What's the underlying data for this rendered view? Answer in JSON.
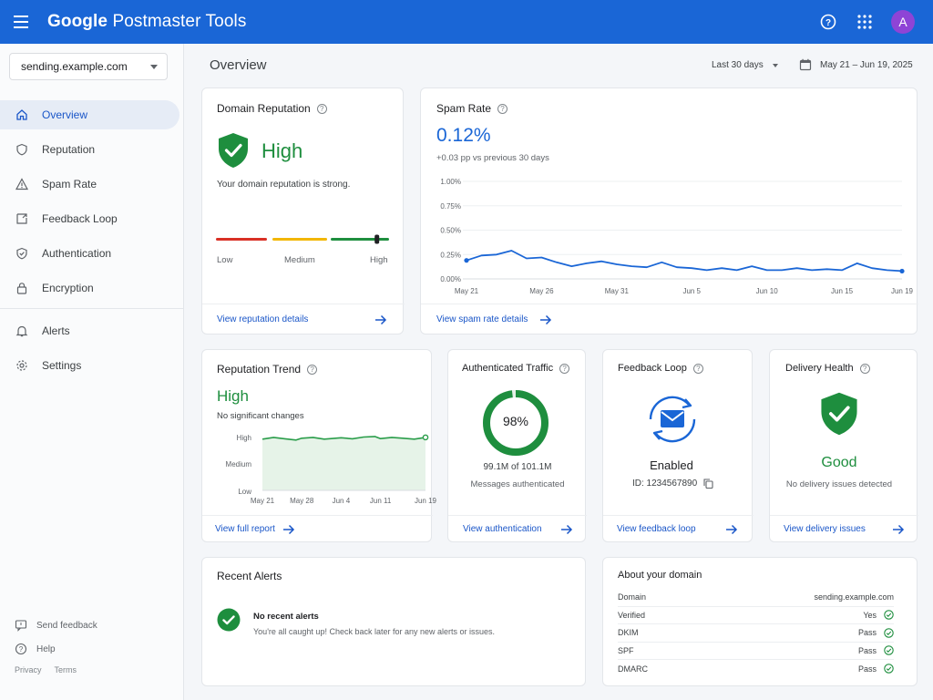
{
  "app": {
    "title_brand": "Google",
    "title_product": "Postmaster Tools",
    "avatar_letter": "A"
  },
  "sidebar": {
    "domain": "sending.example.com",
    "items": [
      {
        "label": "Overview",
        "icon": "home-icon"
      },
      {
        "label": "Reputation",
        "icon": "shield-icon"
      },
      {
        "label": "Spam Rate",
        "icon": "warning-icon"
      },
      {
        "label": "Feedback Loop",
        "icon": "feedback-icon"
      },
      {
        "label": "Authentication",
        "icon": "shield-check-icon"
      },
      {
        "label": "Encryption",
        "icon": "lock-icon"
      }
    ],
    "items2": [
      {
        "label": "Alerts",
        "icon": "bell-icon"
      },
      {
        "label": "Settings",
        "icon": "gear-icon"
      }
    ],
    "footer": {
      "send_feedback": "Send feedback",
      "help": "Help",
      "privacy": "Privacy",
      "terms": "Terms"
    }
  },
  "header": {
    "title": "Overview",
    "range": "Last 30 days",
    "dates": "May 21 – Jun 19, 2025"
  },
  "domain_reputation": {
    "title": "Domain Reputation",
    "status": "High",
    "description": "Your domain reputation is strong.",
    "scale": [
      "Low",
      "Medium",
      "High"
    ],
    "level": 0.93,
    "link": "View reputation details"
  },
  "spam_rate": {
    "title": "Spam Rate",
    "value": "0.12%",
    "delta": "+0.03 pp vs previous 30 days",
    "link": "View spam rate details"
  },
  "reputation_trend": {
    "title": "Reputation Trend",
    "status": "High",
    "note": "No significant changes",
    "link": "View full report"
  },
  "auth_traffic": {
    "title": "Authenticated Traffic",
    "percent": "98%",
    "counts": "99.1M of 101.1M",
    "caption": "Messages authenticated",
    "fraction": 0.98,
    "link": "View authentication"
  },
  "feedback_loop": {
    "title": "Feedback Loop",
    "status": "Enabled",
    "id": "ID: 1234567890",
    "link": "View feedback loop"
  },
  "delivery_health": {
    "title": "Delivery Health",
    "status": "Good",
    "caption": "No delivery issues detected",
    "link": "View delivery issues"
  },
  "recent_alerts": {
    "title": "Recent Alerts",
    "heading": "No recent alerts",
    "message": "You're all caught up! Check back later for any new alerts or issues."
  },
  "about_domain": {
    "title": "About your domain",
    "rows": [
      {
        "label": "Domain",
        "value": "sending.example.com"
      },
      {
        "label": "Verified",
        "value": "Yes"
      },
      {
        "label": "DKIM",
        "value": "Pass"
      },
      {
        "label": "SPF",
        "value": "Pass"
      },
      {
        "label": "DMARC",
        "value": "Pass"
      }
    ]
  },
  "chart_data": [
    {
      "type": "line",
      "title": "Spam Rate",
      "x": [
        "May 21",
        "May 22",
        "May 23",
        "May 24",
        "May 25",
        "May 26",
        "May 27",
        "May 28",
        "May 29",
        "May 30",
        "May 31",
        "Jun 1",
        "Jun 2",
        "Jun 3",
        "Jun 4",
        "Jun 5",
        "Jun 6",
        "Jun 7",
        "Jun 8",
        "Jun 9",
        "Jun 10",
        "Jun 11",
        "Jun 12",
        "Jun 13",
        "Jun 14",
        "Jun 15",
        "Jun 16",
        "Jun 17",
        "Jun 18",
        "Jun 19"
      ],
      "values": [
        0.19,
        0.24,
        0.25,
        0.29,
        0.21,
        0.22,
        0.17,
        0.13,
        0.16,
        0.18,
        0.15,
        0.13,
        0.12,
        0.17,
        0.12,
        0.11,
        0.09,
        0.11,
        0.09,
        0.13,
        0.09,
        0.09,
        0.11,
        0.09,
        0.1,
        0.09,
        0.16,
        0.11,
        0.09,
        0.08
      ],
      "x_ticks": [
        "May 21",
        "May 26",
        "May 31",
        "Jun 5",
        "Jun 10",
        "Jun 15",
        "Jun 19"
      ],
      "y_ticks": [
        "1.00%",
        "0.75%",
        "0.50%",
        "0.25%",
        "0.00%"
      ],
      "ylim": [
        0,
        1.0
      ],
      "grid": true,
      "color": "#1a66d6"
    },
    {
      "type": "area",
      "title": "Reputation Trend",
      "x": [
        "May 21",
        "May 23",
        "May 25",
        "May 27",
        "May 28",
        "May 30",
        "Jun 1",
        "Jun 3",
        "Jun 4",
        "Jun 6",
        "Jun 8",
        "Jun 10",
        "Jun 11",
        "Jun 13",
        "Jun 15",
        "Jun 17",
        "Jun 19"
      ],
      "values": [
        2.9,
        3.0,
        2.92,
        2.85,
        2.95,
        3.0,
        2.9,
        2.95,
        2.98,
        2.92,
        3.02,
        3.05,
        2.93,
        3.0,
        2.95,
        2.9,
        3.0
      ],
      "x_ticks": [
        "May 21",
        "May 28",
        "Jun 4",
        "Jun 11",
        "Jun 19"
      ],
      "y_ticks": [
        "High",
        "Medium",
        "Low"
      ],
      "ylim": [
        0,
        3.2
      ],
      "color": "#2a9d4a"
    }
  ],
  "colors": {
    "accent": "#1a66d6",
    "good": "#1e8e3e",
    "low": "#d93025",
    "medium": "#f2b600"
  }
}
